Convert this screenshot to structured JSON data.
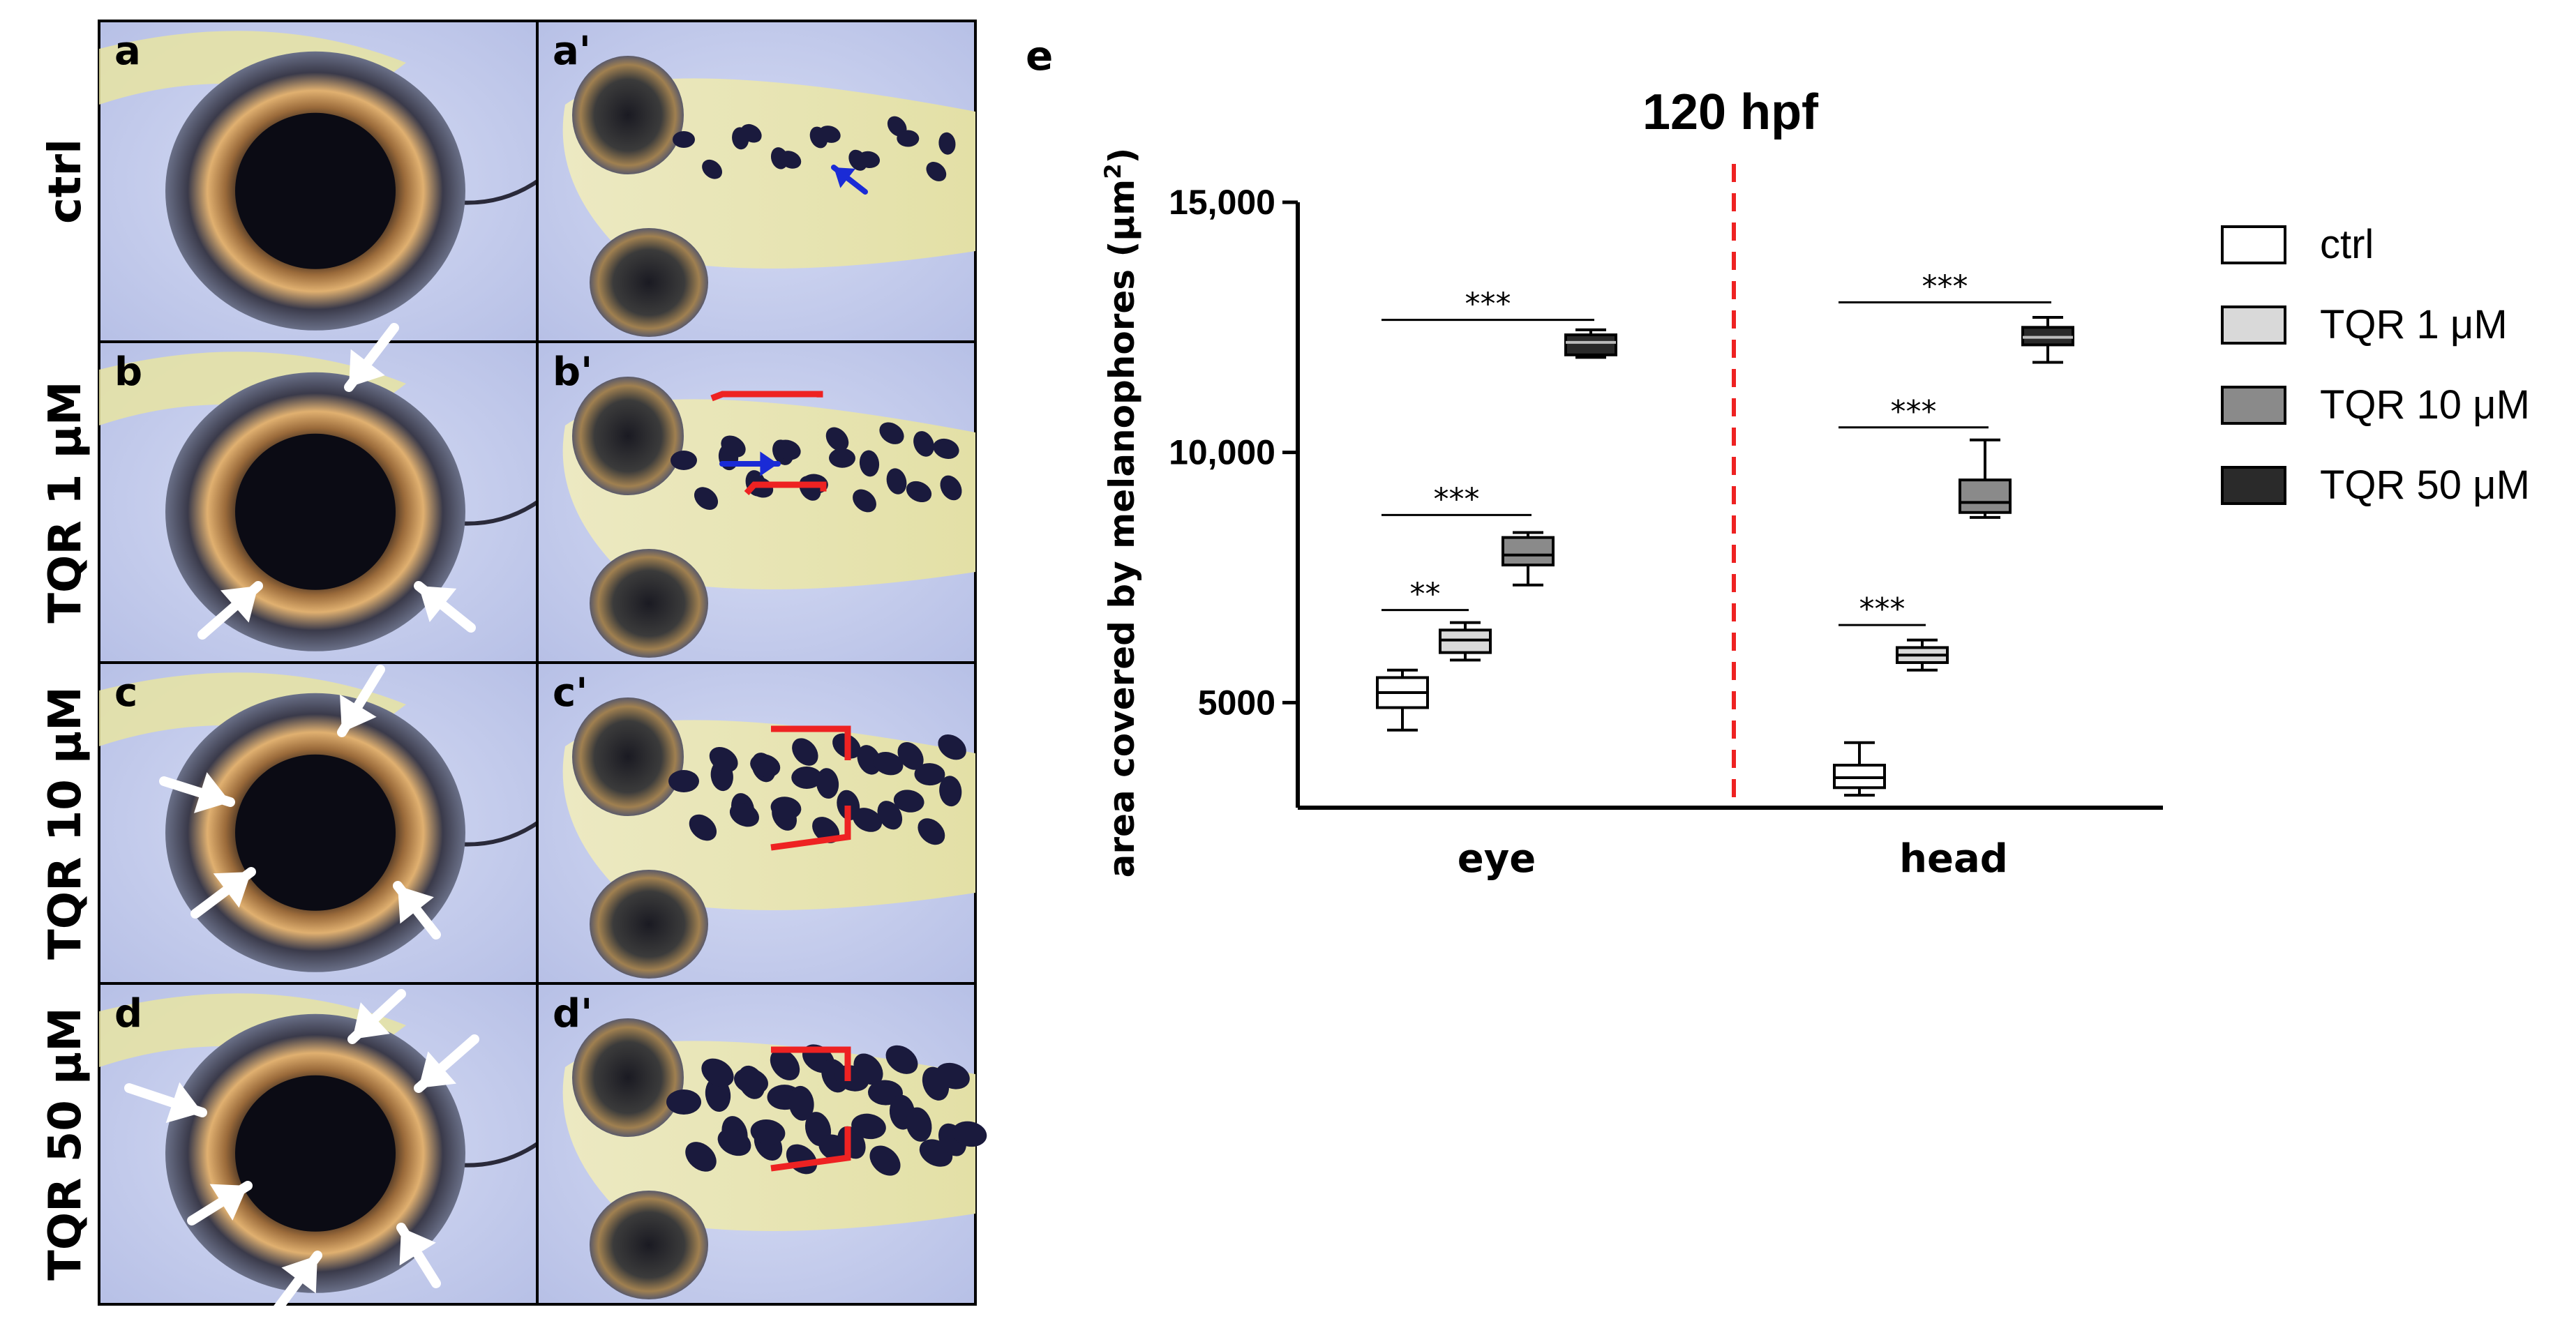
{
  "figure": {
    "row_labels": [
      "ctrl",
      "TQR 1 μM",
      "TQR 10 μM",
      "TQR 50 μM"
    ],
    "panel_letters": {
      "left": [
        "a",
        "b",
        "c",
        "d"
      ],
      "right": [
        "a'",
        "b'",
        "c'",
        "d'"
      ],
      "chart": "e"
    },
    "colors": {
      "background_blue": "#c5cdee",
      "eye_dark": "#0b0b14",
      "iridophore": "#c99a5c",
      "yolk_yellow": "#e7e4a2",
      "melanophore": "#1a1a3d",
      "white_arrow": "#ffffff",
      "blue_arrow": "#1a2bd6",
      "red_bracket": "#ee2222"
    }
  },
  "chart_data": {
    "type": "box",
    "title": "120 hpf",
    "ylabel": "area covered by melanophores (μm²)",
    "ylabel_text": "area covered by melanophores (μm",
    "ylabel_sup": "2",
    "ylabel_end": ")",
    "xlabel": "",
    "ylim": [
      2900,
      15000
    ],
    "yticks": [
      5000,
      10000,
      15000
    ],
    "ytick_labels": [
      "5000",
      "10,000",
      "15,000"
    ],
    "categories": [
      "eye",
      "head"
    ],
    "legend_position": "right",
    "divider": "dashed red line between eye and head groups",
    "series": [
      {
        "name": "ctrl",
        "color": "#ffffff",
        "boxes": [
          {
            "category": "eye",
            "min": 4450,
            "q1": 4900,
            "median": 5200,
            "q3": 5500,
            "max": 5650
          },
          {
            "category": "head",
            "min": 3150,
            "q1": 3300,
            "median": 3500,
            "q3": 3750,
            "max": 4200
          }
        ]
      },
      {
        "name": "TQR 1 μM",
        "color": "#d9d9d9",
        "boxes": [
          {
            "category": "eye",
            "min": 5850,
            "q1": 6000,
            "median": 6250,
            "q3": 6450,
            "max": 6600
          },
          {
            "category": "head",
            "min": 5650,
            "q1": 5800,
            "median": 5950,
            "q3": 6100,
            "max": 6250
          }
        ]
      },
      {
        "name": "TQR 10 μM",
        "color": "#8a8a8a",
        "boxes": [
          {
            "category": "eye",
            "min": 7350,
            "q1": 7750,
            "median": 7950,
            "q3": 8300,
            "max": 8400
          },
          {
            "category": "head",
            "min": 8700,
            "q1": 8800,
            "median": 9000,
            "q3": 9450,
            "max": 10250
          }
        ]
      },
      {
        "name": "TQR 50 μM",
        "color": "#2a2a2a",
        "boxes": [
          {
            "category": "eye",
            "min": 11900,
            "q1": 11950,
            "median": 12200,
            "q3": 12350,
            "max": 12450
          },
          {
            "category": "head",
            "min": 11800,
            "q1": 12150,
            "median": 12300,
            "q3": 12500,
            "max": 12700
          }
        ]
      }
    ],
    "significance": [
      {
        "category": "eye",
        "from": "ctrl",
        "to": "TQR 1 μM",
        "label": "**"
      },
      {
        "category": "eye",
        "from": "ctrl",
        "to": "TQR 10 μM",
        "label": "***"
      },
      {
        "category": "eye",
        "from": "ctrl",
        "to": "TQR 50 μM",
        "label": "***"
      },
      {
        "category": "head",
        "from": "ctrl",
        "to": "TQR 1 μM",
        "label": "***"
      },
      {
        "category": "head",
        "from": "ctrl",
        "to": "TQR 10 μM",
        "label": "***"
      },
      {
        "category": "head",
        "from": "ctrl",
        "to": "TQR 50 μM",
        "label": "***"
      }
    ]
  }
}
